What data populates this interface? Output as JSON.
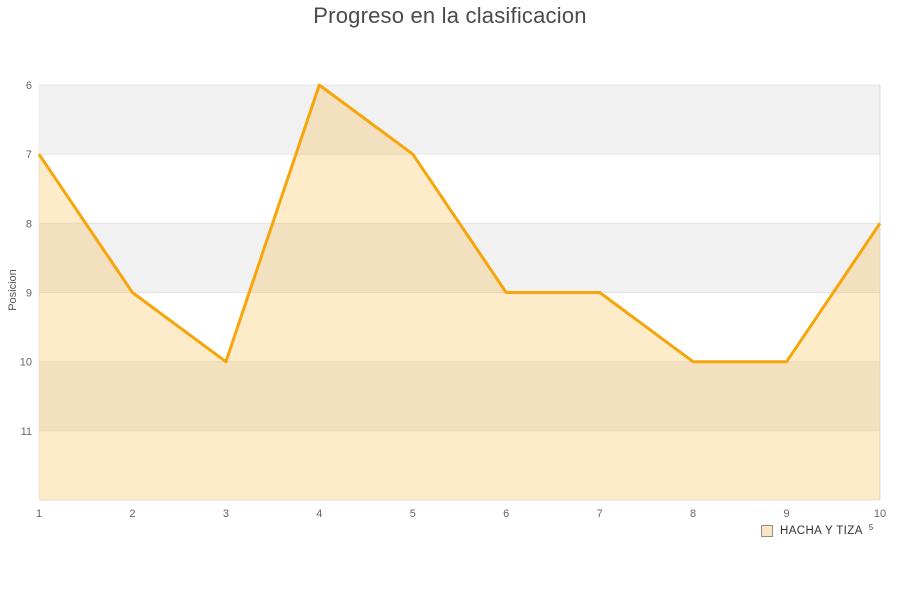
{
  "chart_data": {
    "type": "area",
    "title": "Progreso en la clasificacion",
    "ylabel": "Posicion",
    "xlabel": "",
    "x": [
      1,
      2,
      3,
      4,
      5,
      6,
      7,
      8,
      9,
      10
    ],
    "categories": [
      "1",
      "2",
      "3",
      "4",
      "5",
      "6",
      "7",
      "8",
      "9",
      "10"
    ],
    "series": [
      {
        "name": "HACHA Y TIZA",
        "values": [
          7,
          9,
          10,
          6,
          7,
          9,
          9,
          10,
          10,
          8
        ],
        "color": "#F6A50B",
        "fill_opacity": 0.22
      }
    ],
    "y_ticks": [
      6,
      7,
      8,
      9,
      10,
      11
    ],
    "ylim": [
      6,
      12
    ],
    "y_inverted": true,
    "grid": "horizontal",
    "plot_bands_alternating": [
      "#F1F1F1",
      "#FFFFFF"
    ],
    "legend_position": "bottom-right"
  },
  "legend": {
    "note": "5"
  },
  "colors": {
    "accent": "#F6A50B",
    "band_gray": "#F1F1F1",
    "gridline": "#E6E6E6",
    "plot_right_border": "#DCDCDC",
    "plot_left_border": "#EDEDED",
    "title_text": "#4A4A4A",
    "tick_text": "#666666",
    "legend_swatch_fill": "#FAE5C3",
    "legend_swatch_border": "#8E8E8E"
  }
}
